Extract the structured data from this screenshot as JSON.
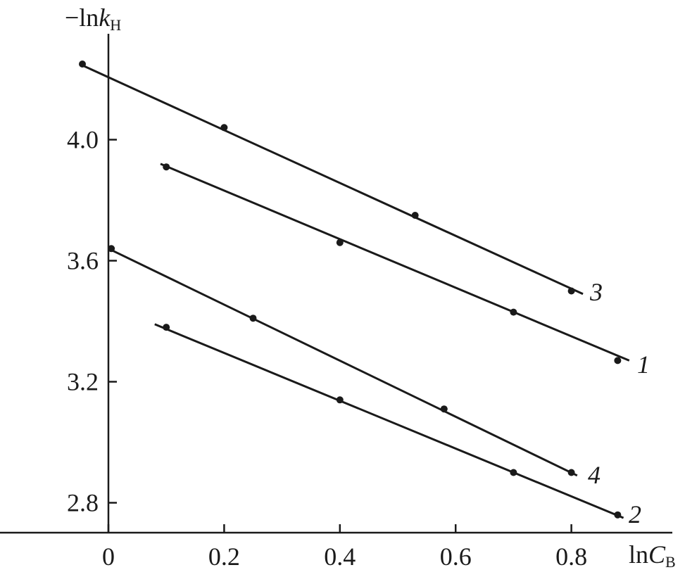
{
  "chart_data": {
    "type": "scatter",
    "xlabel": {
      "prefix": "ln",
      "symbol": "C",
      "subscript": "B"
    },
    "ylabel": {
      "prefix": "−ln",
      "symbol": "k",
      "subscript": "H"
    },
    "xlim": [
      -0.185,
      0.99
    ],
    "ylim": [
      2.7,
      4.35
    ],
    "xticks": [
      0,
      0.2,
      0.4,
      0.6,
      0.8
    ],
    "xtick_labels": [
      "0",
      "0.2",
      "0.4",
      "0.6",
      "0.8"
    ],
    "yticks": [
      2.8,
      3.2,
      3.6,
      4.0
    ],
    "ytick_labels": [
      "2.8",
      "3.2",
      "3.6",
      "4.0"
    ],
    "grid": false,
    "legend": "none",
    "series": [
      {
        "label": "1",
        "points": [
          [
            0.1,
            3.91
          ],
          [
            0.4,
            3.66
          ],
          [
            0.7,
            3.43
          ],
          [
            0.88,
            3.27
          ]
        ],
        "fit": [
          [
            0.09,
            3.92
          ],
          [
            0.9,
            3.27
          ]
        ]
      },
      {
        "label": "2",
        "points": [
          [
            0.1,
            3.38
          ],
          [
            0.4,
            3.14
          ],
          [
            0.7,
            2.9
          ],
          [
            0.88,
            2.76
          ]
        ],
        "fit": [
          [
            0.08,
            3.39
          ],
          [
            0.89,
            2.75
          ]
        ]
      },
      {
        "label": "3",
        "points": [
          [
            -0.045,
            4.25
          ],
          [
            0.2,
            4.04
          ],
          [
            0.53,
            3.75
          ],
          [
            0.8,
            3.5
          ]
        ],
        "fit": [
          [
            -0.05,
            4.25
          ],
          [
            0.82,
            3.49
          ]
        ]
      },
      {
        "label": "4",
        "points": [
          [
            0.005,
            3.64
          ],
          [
            0.25,
            3.41
          ],
          [
            0.58,
            3.11
          ],
          [
            0.8,
            2.9
          ]
        ],
        "fit": [
          [
            0.0,
            3.64
          ],
          [
            0.81,
            2.89
          ]
        ]
      }
    ]
  }
}
